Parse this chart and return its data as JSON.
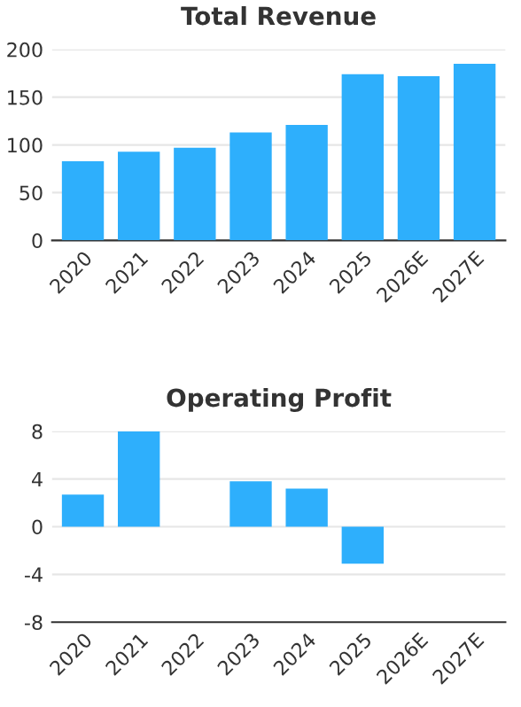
{
  "chart_data": [
    {
      "type": "bar",
      "title": "Total Revenue",
      "categories": [
        "2020",
        "2021",
        "2022",
        "2023",
        "2024",
        "2025",
        "2026E",
        "2027E"
      ],
      "values": [
        83,
        93,
        97,
        113,
        121,
        174,
        172,
        185
      ],
      "color": "#2eaffc",
      "ylim": [
        0,
        200
      ],
      "yticks": [
        0,
        50,
        100,
        150,
        200
      ],
      "grid": "y"
    },
    {
      "type": "bar",
      "title": "Operating Profit",
      "categories": [
        "2020",
        "2021",
        "2022",
        "2023",
        "2024",
        "2025",
        "2026E",
        "2027E"
      ],
      "values": [
        2.7,
        8,
        null,
        3.8,
        3.2,
        -3.1,
        null,
        null
      ],
      "color": "#2eaffc",
      "ylim": [
        -8,
        8
      ],
      "yticks": [
        {
          "value": -8,
          "label": "-8"
        },
        {
          "value": -4,
          "label": "-4"
        },
        0,
        4,
        8
      ],
      "grid": "y"
    }
  ]
}
